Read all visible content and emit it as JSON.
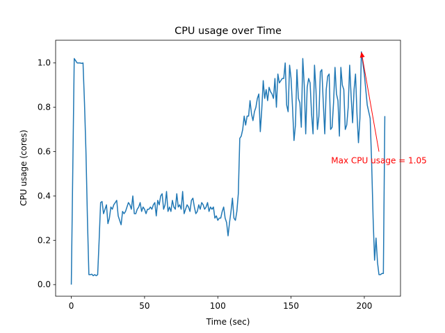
{
  "chart_data": {
    "type": "line",
    "title": "CPU usage over Time",
    "xlabel": "Time (sec)",
    "ylabel": "CPU usage (cores)",
    "x": [
      0,
      1,
      2,
      3,
      4,
      5,
      6,
      7,
      8,
      9,
      10,
      11,
      12,
      13,
      14,
      15,
      16,
      17,
      18,
      19,
      20,
      21,
      22,
      23,
      24,
      25,
      26,
      27,
      28,
      29,
      30,
      31,
      32,
      33,
      34,
      35,
      36,
      37,
      38,
      39,
      40,
      41,
      42,
      43,
      44,
      45,
      46,
      47,
      48,
      49,
      50,
      51,
      52,
      53,
      54,
      55,
      56,
      57,
      58,
      59,
      60,
      61,
      62,
      63,
      64,
      65,
      66,
      67,
      68,
      69,
      70,
      71,
      72,
      73,
      74,
      75,
      76,
      77,
      78,
      79,
      80,
      81,
      82,
      83,
      84,
      85,
      86,
      87,
      88,
      89,
      90,
      91,
      92,
      93,
      94,
      95,
      96,
      97,
      98,
      99,
      100,
      101,
      102,
      103,
      104,
      105,
      106,
      107,
      108,
      109,
      110,
      111,
      112,
      113,
      114,
      115,
      116,
      117,
      118,
      119,
      120,
      121,
      122,
      123,
      124,
      125,
      126,
      127,
      128,
      129,
      130,
      131,
      132,
      133,
      134,
      135,
      136,
      137,
      138,
      139,
      140,
      141,
      142,
      143,
      144,
      145,
      146,
      147,
      148,
      149,
      150,
      151,
      152,
      153,
      154,
      155,
      156,
      157,
      158,
      159,
      160,
      161,
      162,
      163,
      164,
      165,
      166,
      167,
      168,
      169,
      170,
      171,
      172,
      173,
      174,
      175,
      176,
      177,
      178,
      179,
      180,
      181,
      182,
      183,
      184,
      185,
      186,
      187,
      188,
      189,
      190,
      191,
      192,
      193,
      194,
      195,
      196,
      197,
      198,
      199,
      200,
      201,
      202,
      203,
      204,
      205,
      206,
      207,
      208,
      209,
      210,
      211,
      212,
      213,
      214
    ],
    "series": [
      {
        "name": "CPU usage",
        "color": "#1f77b4",
        "values": [
          0,
          0.51,
          1.02,
          1.01,
          1.0,
          1.0,
          1.0,
          0.998,
          1.0,
          0.82,
          0.6,
          0.3,
          0.045,
          0.045,
          0.047,
          0.04,
          0.045,
          0.04,
          0.045,
          0.2,
          0.37,
          0.375,
          0.32,
          0.34,
          0.36,
          0.275,
          0.3,
          0.35,
          0.34,
          0.36,
          0.37,
          0.38,
          0.31,
          0.29,
          0.27,
          0.33,
          0.32,
          0.33,
          0.35,
          0.37,
          0.36,
          0.34,
          0.4,
          0.32,
          0.32,
          0.34,
          0.35,
          0.37,
          0.33,
          0.35,
          0.34,
          0.32,
          0.34,
          0.34,
          0.35,
          0.34,
          0.36,
          0.37,
          0.31,
          0.38,
          0.36,
          0.4,
          0.41,
          0.34,
          0.36,
          0.42,
          0.33,
          0.35,
          0.33,
          0.38,
          0.35,
          0.34,
          0.41,
          0.35,
          0.36,
          0.34,
          0.42,
          0.32,
          0.34,
          0.36,
          0.35,
          0.33,
          0.38,
          0.39,
          0.35,
          0.32,
          0.33,
          0.36,
          0.34,
          0.37,
          0.36,
          0.34,
          0.35,
          0.37,
          0.33,
          0.35,
          0.34,
          0.35,
          0.3,
          0.31,
          0.29,
          0.3,
          0.3,
          0.33,
          0.35,
          0.3,
          0.28,
          0.22,
          0.28,
          0.33,
          0.39,
          0.3,
          0.29,
          0.33,
          0.41,
          0.66,
          0.67,
          0.7,
          0.76,
          0.72,
          0.76,
          0.76,
          0.83,
          0.77,
          0.74,
          0.78,
          0.8,
          0.84,
          0.86,
          0.69,
          0.79,
          0.92,
          0.84,
          0.88,
          0.83,
          0.89,
          0.87,
          0.86,
          0.84,
          0.93,
          0.8,
          0.95,
          0.91,
          0.92,
          0.93,
          0.93,
          1.0,
          0.81,
          0.78,
          0.99,
          0.93,
          0.8,
          0.65,
          0.72,
          0.97,
          0.84,
          0.82,
          0.71,
          1.02,
          0.9,
          0.68,
          0.89,
          0.93,
          0.91,
          0.77,
          0.68,
          0.99,
          0.88,
          0.7,
          0.76,
          0.96,
          0.97,
          0.82,
          0.68,
          0.88,
          0.94,
          0.95,
          0.7,
          0.71,
          0.82,
          0.98,
          0.86,
          0.83,
          0.67,
          0.98,
          0.9,
          0.88,
          0.7,
          0.72,
          0.8,
          0.99,
          0.85,
          0.73,
          0.88,
          0.95,
          0.77,
          0.64,
          0.75,
          1.05,
          1.0,
          0.95,
          0.88,
          0.81,
          0.78,
          0.75,
          0.55,
          0.3,
          0.11,
          0.21,
          0.1,
          0.045,
          0.045,
          0.05,
          0.05,
          0.76
        ]
      }
    ],
    "xlim": [
      -10.7,
      224.7
    ],
    "xticks": [
      0,
      50,
      100,
      150,
      200
    ],
    "ylim": [
      -0.0525,
      1.1025
    ],
    "yticks": [
      {
        "value": 0,
        "label": "0.0"
      },
      0.2,
      0.4,
      0.6,
      0.8,
      {
        "value": 1,
        "label": "1.0"
      }
    ],
    "grid": false,
    "annotation": {
      "text": "Max CPU usage = 1.05",
      "x": 198,
      "y": 1.05,
      "text_x": 210,
      "text_y": 0.6,
      "color": "#ff0000"
    }
  }
}
